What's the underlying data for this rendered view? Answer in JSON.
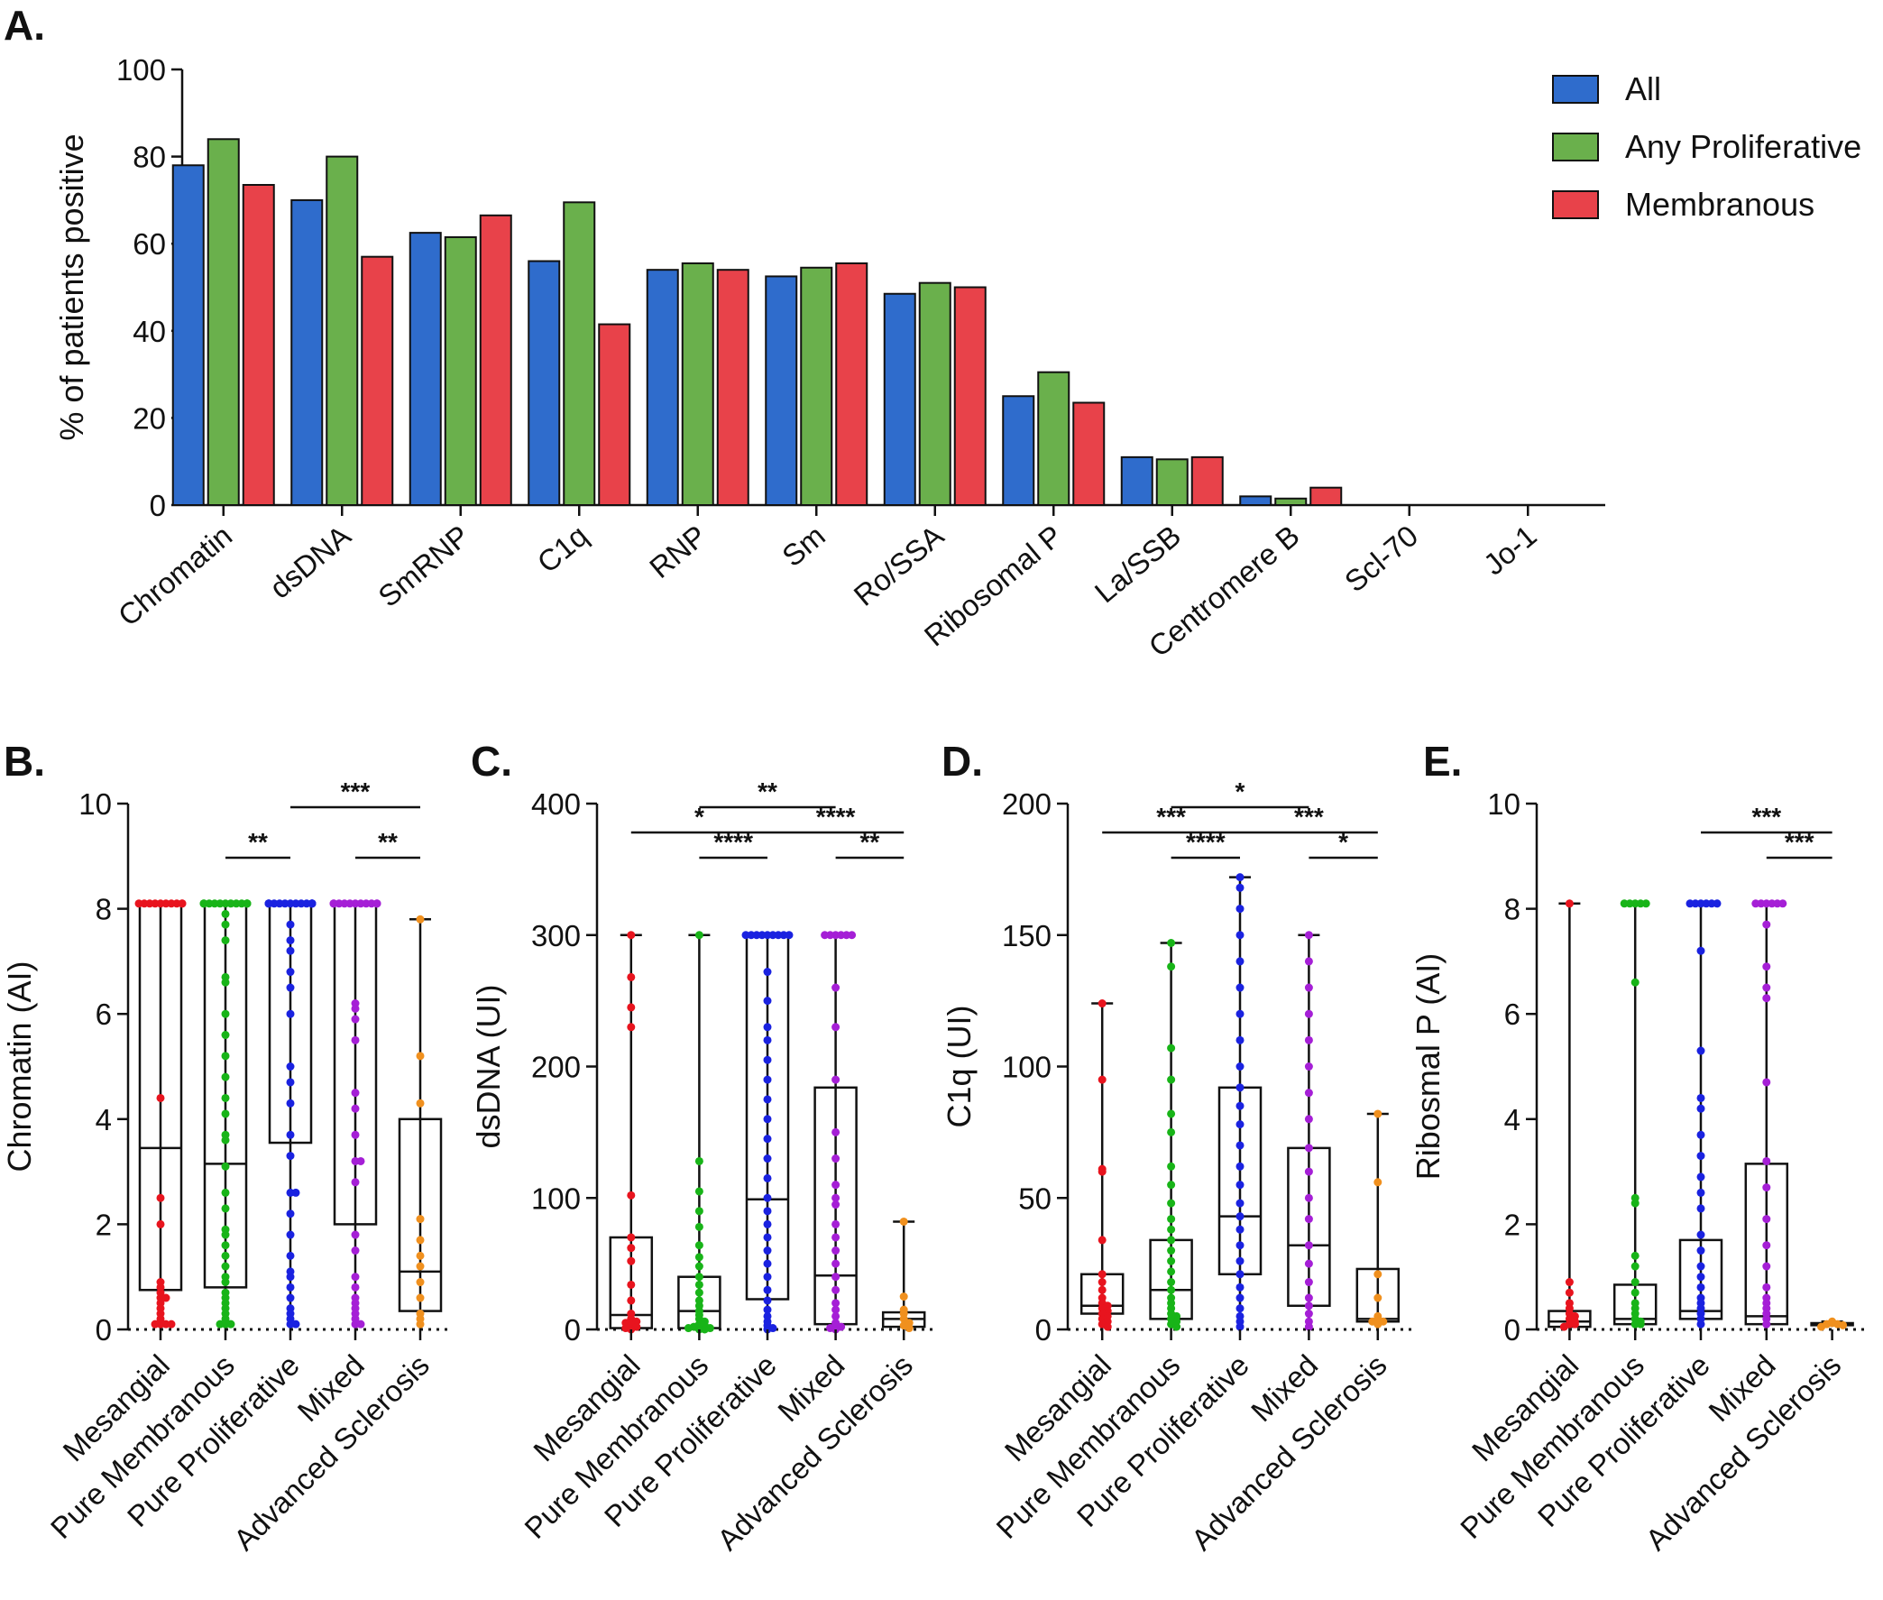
{
  "panel_letters": [
    "A.",
    "B.",
    "C.",
    "D.",
    "E."
  ],
  "chart_data": [
    {
      "panel": "A.",
      "type": "bar",
      "ylabel": "% of patients positive",
      "ylim": [
        0,
        100
      ],
      "yticks": [
        0,
        20,
        40,
        60,
        80,
        100
      ],
      "legend_position": "top-right",
      "categories": [
        "Chromatin",
        "dsDNA",
        "SmRNP",
        "C1q",
        "RNP",
        "Sm",
        "Ro/SSA",
        "Ribosomal P",
        "La/SSB",
        "Centromere B",
        "Scl-70",
        "Jo-1"
      ],
      "series": [
        {
          "name": "All",
          "color": "#2f6ccc",
          "values": [
            78,
            70,
            62.5,
            56,
            54,
            52.5,
            48.5,
            25,
            11,
            2,
            0,
            0
          ]
        },
        {
          "name": "Any Proliferative",
          "color": "#6ab04c",
          "values": [
            84,
            80,
            61.5,
            69.5,
            55.5,
            54.5,
            51,
            30.5,
            10.5,
            1.5,
            0,
            0
          ]
        },
        {
          "name": "Membranous",
          "color": "#e8424a",
          "values": [
            73.5,
            57,
            66.5,
            41.5,
            54,
            55.5,
            50,
            23.5,
            11,
            4,
            0,
            0
          ]
        }
      ]
    },
    {
      "panel": "B.",
      "type": "box",
      "ylabel": "Chromatin (AI)",
      "ylim": [
        0,
        10
      ],
      "yticks": [
        0,
        2,
        4,
        6,
        8,
        10
      ],
      "categories": [
        "Mesangial",
        "Pure Membranous",
        "Pure Proliferative",
        "Mixed",
        "Advanced Sclerosis"
      ],
      "colors": [
        "#e8141e",
        "#18b418",
        "#1a22e0",
        "#a51fd6",
        "#f0901e"
      ],
      "boxes": [
        {
          "min": 0,
          "q1": 0.75,
          "median": 3.45,
          "q3": 8.1,
          "max": 8.1
        },
        {
          "min": 0,
          "q1": 0.8,
          "median": 3.15,
          "q3": 8.1,
          "max": 8.1
        },
        {
          "min": 0,
          "q1": 3.55,
          "median": 8.1,
          "q3": 8.1,
          "max": 8.1
        },
        {
          "min": 0,
          "q1": 2.0,
          "median": 8.1,
          "q3": 8.1,
          "max": 8.1
        },
        {
          "min": 0,
          "q1": 0.35,
          "median": 1.1,
          "q3": 4.0,
          "max": 7.8
        }
      ],
      "points": [
        [
          8.1,
          8.1,
          8.1,
          8.1,
          8.1,
          8.1,
          8.1,
          8.1,
          8.1,
          8.1,
          4.4,
          2.5,
          2.0,
          0.9,
          0.8,
          0.7,
          0.6,
          0.6,
          0.5,
          0.4,
          0.3,
          0.2,
          0.1,
          0.1,
          0.1,
          0.1
        ],
        [
          8.1,
          8.1,
          8.1,
          8.1,
          8.1,
          8.1,
          8.1,
          8.1,
          8.1,
          8.1,
          8.1,
          8.1,
          7.9,
          7.7,
          7.4,
          6.7,
          6.6,
          6.0,
          5.6,
          5.2,
          4.8,
          4.4,
          4.1,
          3.7,
          3.6,
          3.1,
          2.6,
          2.3,
          1.9,
          1.8,
          1.6,
          1.4,
          1.2,
          1.0,
          0.9,
          0.7,
          0.6,
          0.5,
          0.4,
          0.3,
          0.2,
          0.1,
          0.1,
          0.1
        ],
        [
          8.1,
          8.1,
          8.1,
          8.1,
          8.1,
          8.1,
          8.1,
          8.1,
          8.1,
          8.1,
          8.1,
          8.1,
          8.1,
          8.1,
          7.7,
          7.4,
          7.2,
          6.8,
          6.5,
          6.0,
          5.0,
          4.7,
          4.3,
          3.7,
          3.3,
          2.6,
          2.6,
          2.2,
          1.8,
          1.4,
          1.1,
          1.0,
          0.8,
          0.6,
          0.4,
          0.3,
          0.2,
          0.1,
          0.1
        ],
        [
          8.1,
          8.1,
          8.1,
          8.1,
          8.1,
          8.1,
          8.1,
          8.1,
          8.1,
          8.1,
          8.1,
          6.2,
          6.1,
          5.9,
          5.5,
          4.5,
          4.2,
          3.7,
          3.2,
          3.2,
          2.8,
          1.8,
          1.5,
          1.0,
          0.8,
          0.6,
          0.5,
          0.4,
          0.3,
          0.2,
          0.1,
          0.1
        ],
        [
          7.8,
          5.2,
          4.3,
          2.1,
          1.7,
          1.4,
          1.2,
          0.9,
          0.6,
          0.3,
          0.2,
          0.1
        ]
      ],
      "comparisons": [
        {
          "from": 1,
          "to": 2,
          "label": "**",
          "level": 0
        },
        {
          "from": 2,
          "to": 4,
          "label": "***",
          "level": 2
        },
        {
          "from": 3,
          "to": 4,
          "label": "**",
          "level": 0
        }
      ]
    },
    {
      "panel": "C.",
      "type": "box",
      "ylabel": "dsDNA (UI)",
      "ylim": [
        0,
        400
      ],
      "yticks": [
        0,
        100,
        200,
        300,
        400
      ],
      "categories": [
        "Mesangial",
        "Pure Membranous",
        "Pure Proliferative",
        "Mixed",
        "Advanced Sclerosis"
      ],
      "colors": [
        "#e8141e",
        "#18b418",
        "#1a22e0",
        "#a51fd6",
        "#f0901e"
      ],
      "boxes": [
        {
          "min": 0,
          "q1": 1,
          "median": 11,
          "q3": 70,
          "max": 300
        },
        {
          "min": 0,
          "q1": 1,
          "median": 14,
          "q3": 40,
          "max": 300
        },
        {
          "min": 0,
          "q1": 23,
          "median": 99,
          "q3": 300,
          "max": 300
        },
        {
          "min": 0,
          "q1": 4,
          "median": 41,
          "q3": 184,
          "max": 300
        },
        {
          "min": 0,
          "q1": 2,
          "median": 8,
          "q3": 13,
          "max": 82
        }
      ],
      "points": [
        [
          300,
          268,
          245,
          230,
          102,
          70,
          62,
          52,
          34,
          22,
          12,
          8,
          6,
          5,
          3,
          2,
          1,
          0
        ],
        [
          300,
          128,
          105,
          90,
          78,
          64,
          55,
          48,
          40,
          34,
          28,
          22,
          18,
          14,
          11,
          8,
          6,
          4,
          3,
          2,
          1,
          1,
          0,
          0
        ],
        [
          300,
          300,
          300,
          300,
          300,
          300,
          300,
          300,
          300,
          272,
          250,
          230,
          220,
          205,
          190,
          175,
          160,
          145,
          130,
          115,
          100,
          90,
          80,
          70,
          60,
          50,
          40,
          30,
          22,
          15,
          10,
          6,
          3,
          1,
          0
        ],
        [
          300,
          300,
          300,
          300,
          300,
          300,
          260,
          230,
          190,
          150,
          130,
          110,
          100,
          95,
          80,
          70,
          60,
          50,
          40,
          30,
          20,
          15,
          10,
          5,
          3,
          2,
          1,
          0
        ],
        [
          82,
          25,
          15,
          12,
          8,
          5,
          3,
          1
        ]
      ],
      "comparisons": [
        {
          "from": 0,
          "to": 2,
          "label": "*",
          "level": 1
        },
        {
          "from": 1,
          "to": 2,
          "label": "****",
          "level": 0
        },
        {
          "from": 1,
          "to": 3,
          "label": "**",
          "level": 2
        },
        {
          "from": 2,
          "to": 4,
          "label": "****",
          "level": 1
        },
        {
          "from": 3,
          "to": 4,
          "label": "**",
          "level": 0
        }
      ]
    },
    {
      "panel": "D.",
      "type": "box",
      "ylabel": "C1q (UI)",
      "ylim": [
        0,
        200
      ],
      "yticks": [
        0,
        50,
        100,
        150,
        200
      ],
      "categories": [
        "Mesangial",
        "Pure Membranous",
        "Pure Proliferative",
        "Mixed",
        "Advanced Sclerosis"
      ],
      "colors": [
        "#e8141e",
        "#18b418",
        "#1a22e0",
        "#a51fd6",
        "#f0901e"
      ],
      "boxes": [
        {
          "min": 0,
          "q1": 6,
          "median": 9,
          "q3": 21,
          "max": 124
        },
        {
          "min": 0,
          "q1": 4,
          "median": 15,
          "q3": 34,
          "max": 147
        },
        {
          "min": 0,
          "q1": 21,
          "median": 43,
          "q3": 92,
          "max": 172
        },
        {
          "min": 0,
          "q1": 9,
          "median": 32,
          "q3": 69,
          "max": 150
        },
        {
          "min": 0,
          "q1": 3,
          "median": 4,
          "q3": 23,
          "max": 82
        }
      ],
      "points": [
        [
          124,
          95,
          61,
          60,
          34,
          21,
          18,
          15,
          12,
          10,
          9,
          8,
          7,
          6,
          5,
          4,
          3,
          2,
          1
        ],
        [
          147,
          138,
          107,
          95,
          82,
          75,
          62,
          55,
          48,
          42,
          38,
          34,
          30,
          26,
          22,
          18,
          15,
          12,
          10,
          8,
          6,
          5,
          4,
          3,
          2,
          1
        ],
        [
          172,
          168,
          160,
          150,
          140,
          130,
          120,
          110,
          100,
          92,
          85,
          78,
          70,
          62,
          55,
          48,
          43,
          38,
          32,
          26,
          21,
          16,
          12,
          8,
          5,
          3,
          1
        ],
        [
          150,
          140,
          130,
          120,
          110,
          100,
          90,
          80,
          69,
          60,
          50,
          42,
          32,
          25,
          18,
          12,
          9,
          6,
          3,
          1
        ],
        [
          82,
          56,
          21,
          12,
          5,
          4,
          3,
          3,
          2
        ]
      ],
      "comparisons": [
        {
          "from": 0,
          "to": 2,
          "label": "***",
          "level": 1
        },
        {
          "from": 1,
          "to": 2,
          "label": "****",
          "level": 0
        },
        {
          "from": 1,
          "to": 3,
          "label": "*",
          "level": 2
        },
        {
          "from": 2,
          "to": 4,
          "label": "***",
          "level": 1
        },
        {
          "from": 3,
          "to": 4,
          "label": "*",
          "level": 0
        }
      ]
    },
    {
      "panel": "E.",
      "type": "box",
      "ylabel": "Ribosmal P (AI)",
      "ylim": [
        0,
        10
      ],
      "yticks": [
        0,
        2,
        4,
        6,
        8,
        10
      ],
      "categories": [
        "Mesangial",
        "Pure Membranous",
        "Pure Proliferative",
        "Mixed",
        "Advanced Sclerosis"
      ],
      "colors": [
        "#e8141e",
        "#18b418",
        "#1a22e0",
        "#a51fd6",
        "#f0901e"
      ],
      "boxes": [
        {
          "min": 0,
          "q1": 0.05,
          "median": 0.15,
          "q3": 0.35,
          "max": 8.1
        },
        {
          "min": 0,
          "q1": 0.1,
          "median": 0.2,
          "q3": 0.85,
          "max": 8.1
        },
        {
          "min": 0,
          "q1": 0.2,
          "median": 0.35,
          "q3": 1.7,
          "max": 8.1
        },
        {
          "min": 0,
          "q1": 0.1,
          "median": 0.25,
          "q3": 3.15,
          "max": 8.1
        },
        {
          "min": 0.05,
          "q1": 0.08,
          "median": 0.1,
          "q3": 0.12,
          "max": 0.15
        }
      ],
      "points": [
        [
          8.1,
          0.9,
          0.7,
          0.5,
          0.4,
          0.3,
          0.25,
          0.2,
          0.15,
          0.1,
          0.1,
          0.05
        ],
        [
          8.1,
          8.1,
          8.1,
          8.1,
          8.1,
          6.6,
          2.5,
          2.4,
          1.4,
          1.2,
          0.9,
          0.7,
          0.5,
          0.4,
          0.3,
          0.2,
          0.15,
          0.1,
          0.1
        ],
        [
          8.1,
          8.1,
          8.1,
          8.1,
          8.1,
          8.1,
          7.2,
          5.3,
          4.4,
          4.2,
          3.7,
          3.3,
          2.9,
          2.6,
          2.3,
          1.8,
          1.5,
          1.2,
          1.0,
          0.8,
          0.6,
          0.5,
          0.4,
          0.3,
          0.2,
          0.1
        ],
        [
          8.1,
          8.1,
          8.1,
          8.1,
          8.1,
          8.1,
          7.7,
          6.9,
          6.5,
          6.3,
          4.7,
          3.2,
          2.7,
          2.1,
          1.6,
          1.2,
          0.8,
          0.6,
          0.5,
          0.4,
          0.3,
          0.2,
          0.1
        ],
        [
          0.15,
          0.12,
          0.1,
          0.1,
          0.08,
          0.05
        ]
      ],
      "comparisons": [
        {
          "from": 2,
          "to": 4,
          "label": "***",
          "level": 1
        },
        {
          "from": 3,
          "to": 4,
          "label": "***",
          "level": 0
        }
      ]
    }
  ]
}
